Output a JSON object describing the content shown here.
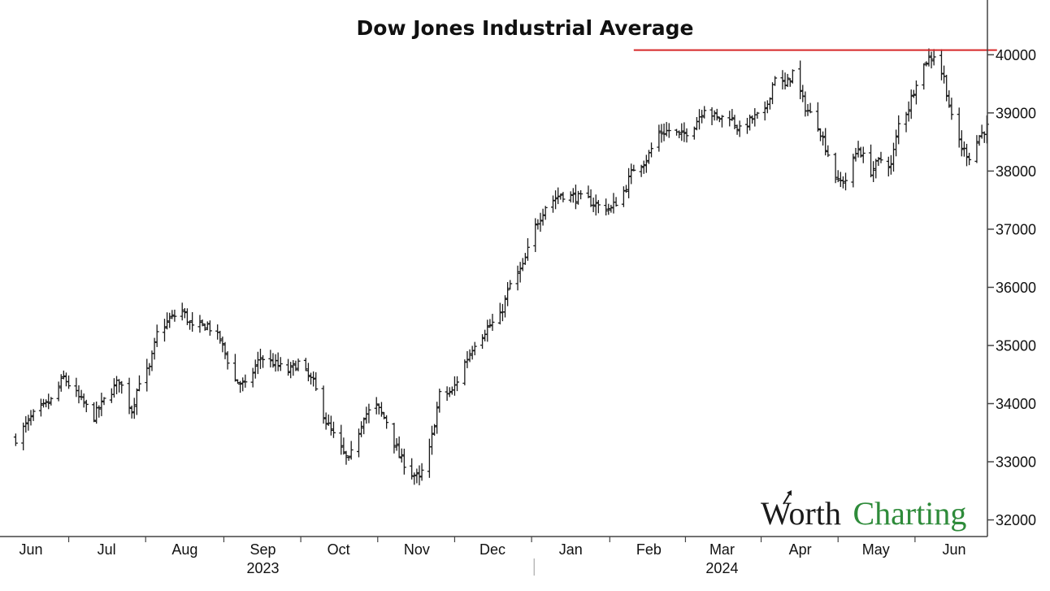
{
  "chart_data": {
    "type": "ohlc",
    "title": "Dow Jones Industrial Average",
    "xlabel": "",
    "ylabel": "",
    "ylim": [
      31700,
      40900
    ],
    "y_ticks": [
      32000,
      33000,
      34000,
      35000,
      36000,
      37000,
      38000,
      39000,
      40000
    ],
    "y_tick_labels": [
      "32000",
      "33000",
      "34000",
      "35000",
      "36000",
      "37000",
      "38000",
      "39000",
      "40000"
    ],
    "y_axis_side": "right",
    "grid": false,
    "legend": "none",
    "x_ticks": [
      {
        "label": "Jun",
        "date": "2023-06-01"
      },
      {
        "label": "Jul",
        "date": "2023-07-01"
      },
      {
        "label": "Aug",
        "date": "2023-08-01"
      },
      {
        "label": "Sep",
        "date": "2023-09-01"
      },
      {
        "label": "Oct",
        "date": "2023-10-01"
      },
      {
        "label": "Nov",
        "date": "2023-11-01"
      },
      {
        "label": "Dec",
        "date": "2023-12-01"
      },
      {
        "label": "Jan",
        "date": "2024-01-01"
      },
      {
        "label": "Feb",
        "date": "2024-02-01"
      },
      {
        "label": "Mar",
        "date": "2024-03-01"
      },
      {
        "label": "Apr",
        "date": "2024-04-01"
      },
      {
        "label": "May",
        "date": "2024-05-01"
      },
      {
        "label": "Jun",
        "date": "2024-06-01"
      }
    ],
    "year_labels": [
      {
        "label": "2023",
        "date": "2023-09-01"
      },
      {
        "label": "2024",
        "date": "2024-03-01"
      }
    ],
    "year_divider_date": "2024-01-01",
    "x_range": [
      "2023-05-26",
      "2024-06-18"
    ],
    "resistance": {
      "value": 40080,
      "start_date": "2024-01-26",
      "end_date": "2024-06-18",
      "color": "#d62728"
    },
    "bar_color": "#1a1a1a",
    "anchors": [
      [
        "2023-05-26",
        33400
      ],
      [
        "2023-06-02",
        33800
      ],
      [
        "2023-06-09",
        34050
      ],
      [
        "2023-06-14",
        34450
      ],
      [
        "2023-06-20",
        34100
      ],
      [
        "2023-06-26",
        33780
      ],
      [
        "2023-06-30",
        34050
      ],
      [
        "2023-07-06",
        34400
      ],
      [
        "2023-07-11",
        33880
      ],
      [
        "2023-07-14",
        34400
      ],
      [
        "2023-07-18",
        34600
      ],
      [
        "2023-07-21",
        35200
      ],
      [
        "2023-07-26",
        35450
      ],
      [
        "2023-07-31",
        35600
      ],
      [
        "2023-08-04",
        35300
      ],
      [
        "2023-08-10",
        35350
      ],
      [
        "2023-08-15",
        35100
      ],
      [
        "2023-08-21",
        34400
      ],
      [
        "2023-08-25",
        34300
      ],
      [
        "2023-08-31",
        34800
      ],
      [
        "2023-09-05",
        34700
      ],
      [
        "2023-09-11",
        34550
      ],
      [
        "2023-09-15",
        34700
      ],
      [
        "2023-09-21",
        34350
      ],
      [
        "2023-09-26",
        33700
      ],
      [
        "2023-10-02",
        33200
      ],
      [
        "2023-10-05",
        33000
      ],
      [
        "2023-10-11",
        33800
      ],
      [
        "2023-10-16",
        33950
      ],
      [
        "2023-10-20",
        33700
      ],
      [
        "2023-10-25",
        33100
      ],
      [
        "2023-10-30",
        32800
      ],
      [
        "2023-11-02",
        32700
      ],
      [
        "2023-11-06",
        33200
      ],
      [
        "2023-11-10",
        34150
      ],
      [
        "2023-11-15",
        34200
      ],
      [
        "2023-11-20",
        34700
      ],
      [
        "2023-11-24",
        35050
      ],
      [
        "2023-11-29",
        35300
      ],
      [
        "2023-12-04",
        35500
      ],
      [
        "2023-12-08",
        36050
      ],
      [
        "2023-12-13",
        36350
      ],
      [
        "2023-12-18",
        37050
      ],
      [
        "2023-12-22",
        37400
      ],
      [
        "2023-12-28",
        37600
      ],
      [
        "2024-01-03",
        37550
      ],
      [
        "2024-01-08",
        37500
      ],
      [
        "2024-01-12",
        37400
      ],
      [
        "2024-01-17",
        37350
      ],
      [
        "2024-01-22",
        37650
      ],
      [
        "2024-01-26",
        38050
      ],
      [
        "2024-01-31",
        38200
      ],
      [
        "2024-02-05",
        38650
      ],
      [
        "2024-02-09",
        38700
      ],
      [
        "2024-02-14",
        38600
      ],
      [
        "2024-02-19",
        38800
      ],
      [
        "2024-02-23",
        39100
      ],
      [
        "2024-02-28",
        38900
      ],
      [
        "2024-03-04",
        38950
      ],
      [
        "2024-03-08",
        38700
      ],
      [
        "2024-03-13",
        38900
      ],
      [
        "2024-03-18",
        39000
      ],
      [
        "2024-03-22",
        39650
      ],
      [
        "2024-03-26",
        39450
      ],
      [
        "2024-03-29",
        39700
      ],
      [
        "2024-04-03",
        39100
      ],
      [
        "2024-04-08",
        38800
      ],
      [
        "2024-04-12",
        38300
      ],
      [
        "2024-04-16",
        37800
      ],
      [
        "2024-04-19",
        37850
      ],
      [
        "2024-04-24",
        38400
      ],
      [
        "2024-04-29",
        38000
      ],
      [
        "2024-05-03",
        38200
      ],
      [
        "2024-05-07",
        38100
      ],
      [
        "2024-05-10",
        38800
      ],
      [
        "2024-05-14",
        39100
      ],
      [
        "2024-05-17",
        39550
      ],
      [
        "2024-05-21",
        39900
      ],
      [
        "2024-05-24",
        40000
      ],
      [
        "2024-05-28",
        39600
      ],
      [
        "2024-05-31",
        38900
      ],
      [
        "2024-06-04",
        38400
      ],
      [
        "2024-06-07",
        38250
      ],
      [
        "2024-06-11",
        38600
      ],
      [
        "2024-06-14",
        38750
      ]
    ]
  },
  "logo": {
    "word_1": "Worth",
    "word_2": "Charting"
  }
}
